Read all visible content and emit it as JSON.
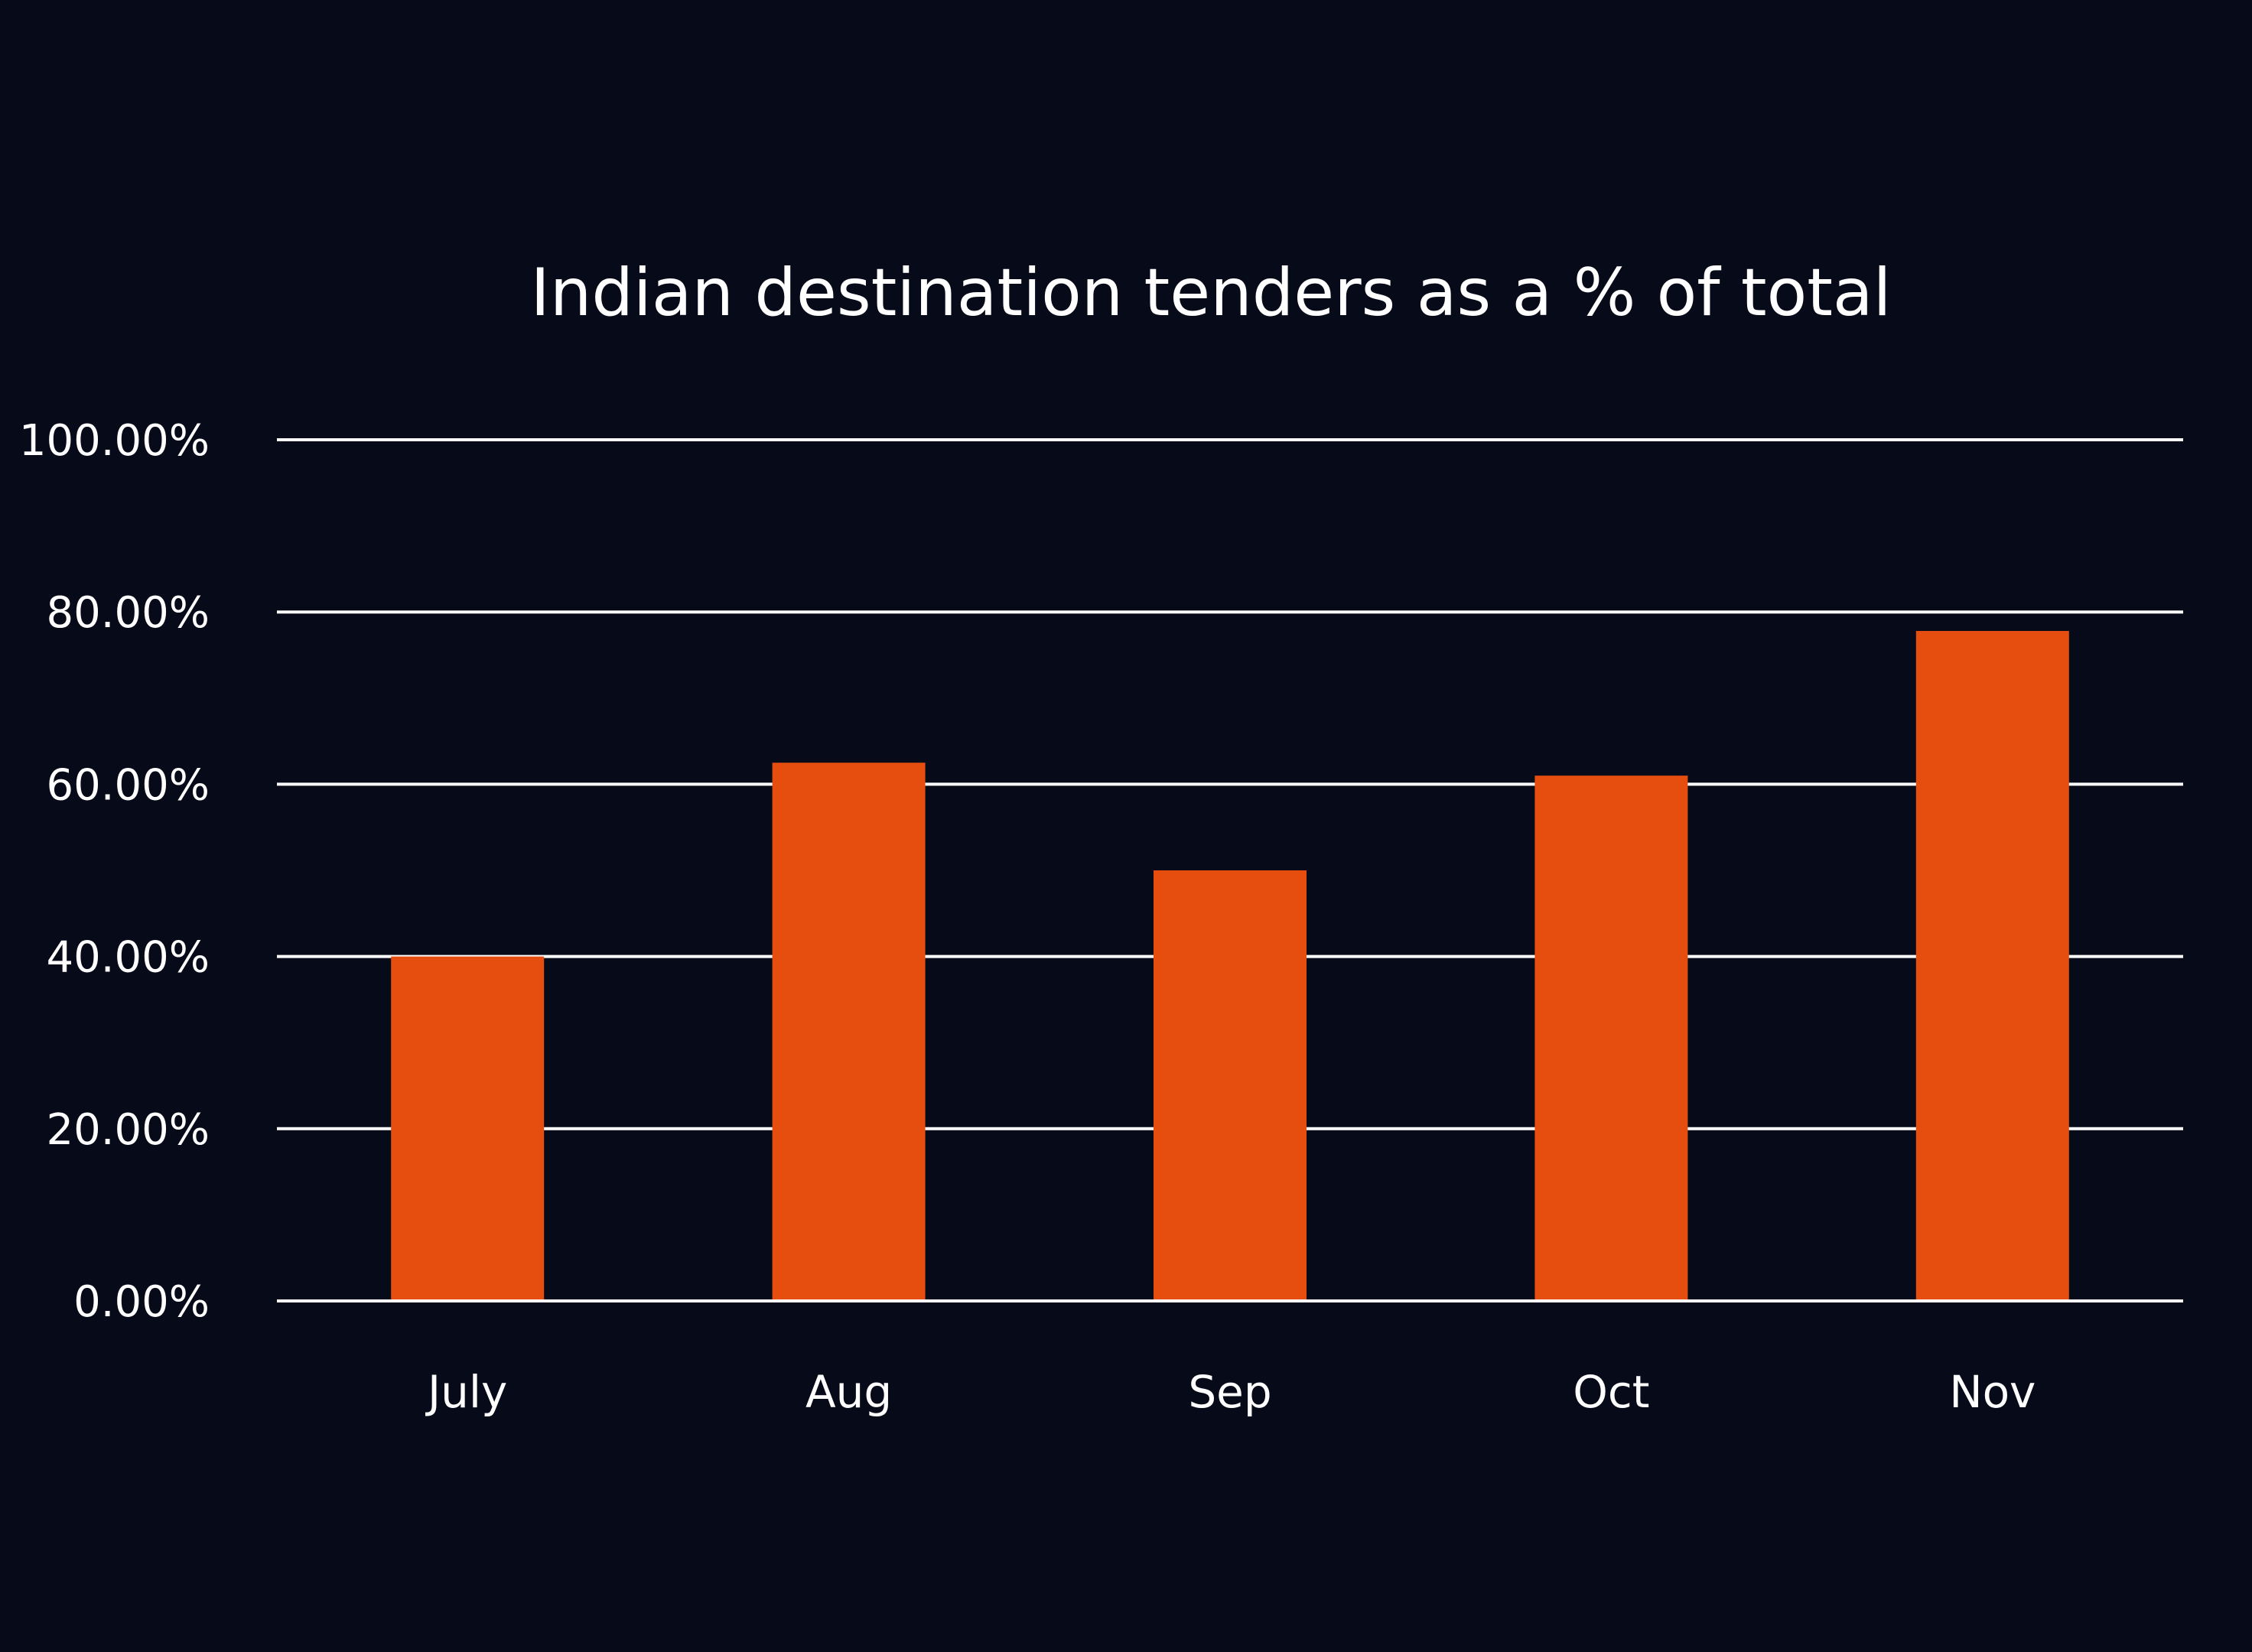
{
  "background_color": "#070a18",
  "chart_data": {
    "type": "bar",
    "title": "Indian destination tenders as a % of total",
    "xlabel": "",
    "ylabel": "",
    "categories": [
      "July",
      "Aug",
      "Sep",
      "Oct",
      "Nov"
    ],
    "values": [
      40.0,
      62.5,
      50.0,
      61.0,
      77.8
    ],
    "value_unit": "%",
    "ylim": [
      0,
      100
    ],
    "yticks": [
      0,
      20,
      40,
      60,
      80,
      100
    ],
    "ytick_labels": [
      "0.00%",
      "20.00%",
      "40.00%",
      "60.00%",
      "80.00%",
      "100.00%"
    ],
    "grid": true,
    "legend": "none",
    "bar_color": "#e54e0e",
    "grid_color": "#ffffff",
    "text_color": "#ffffff"
  }
}
